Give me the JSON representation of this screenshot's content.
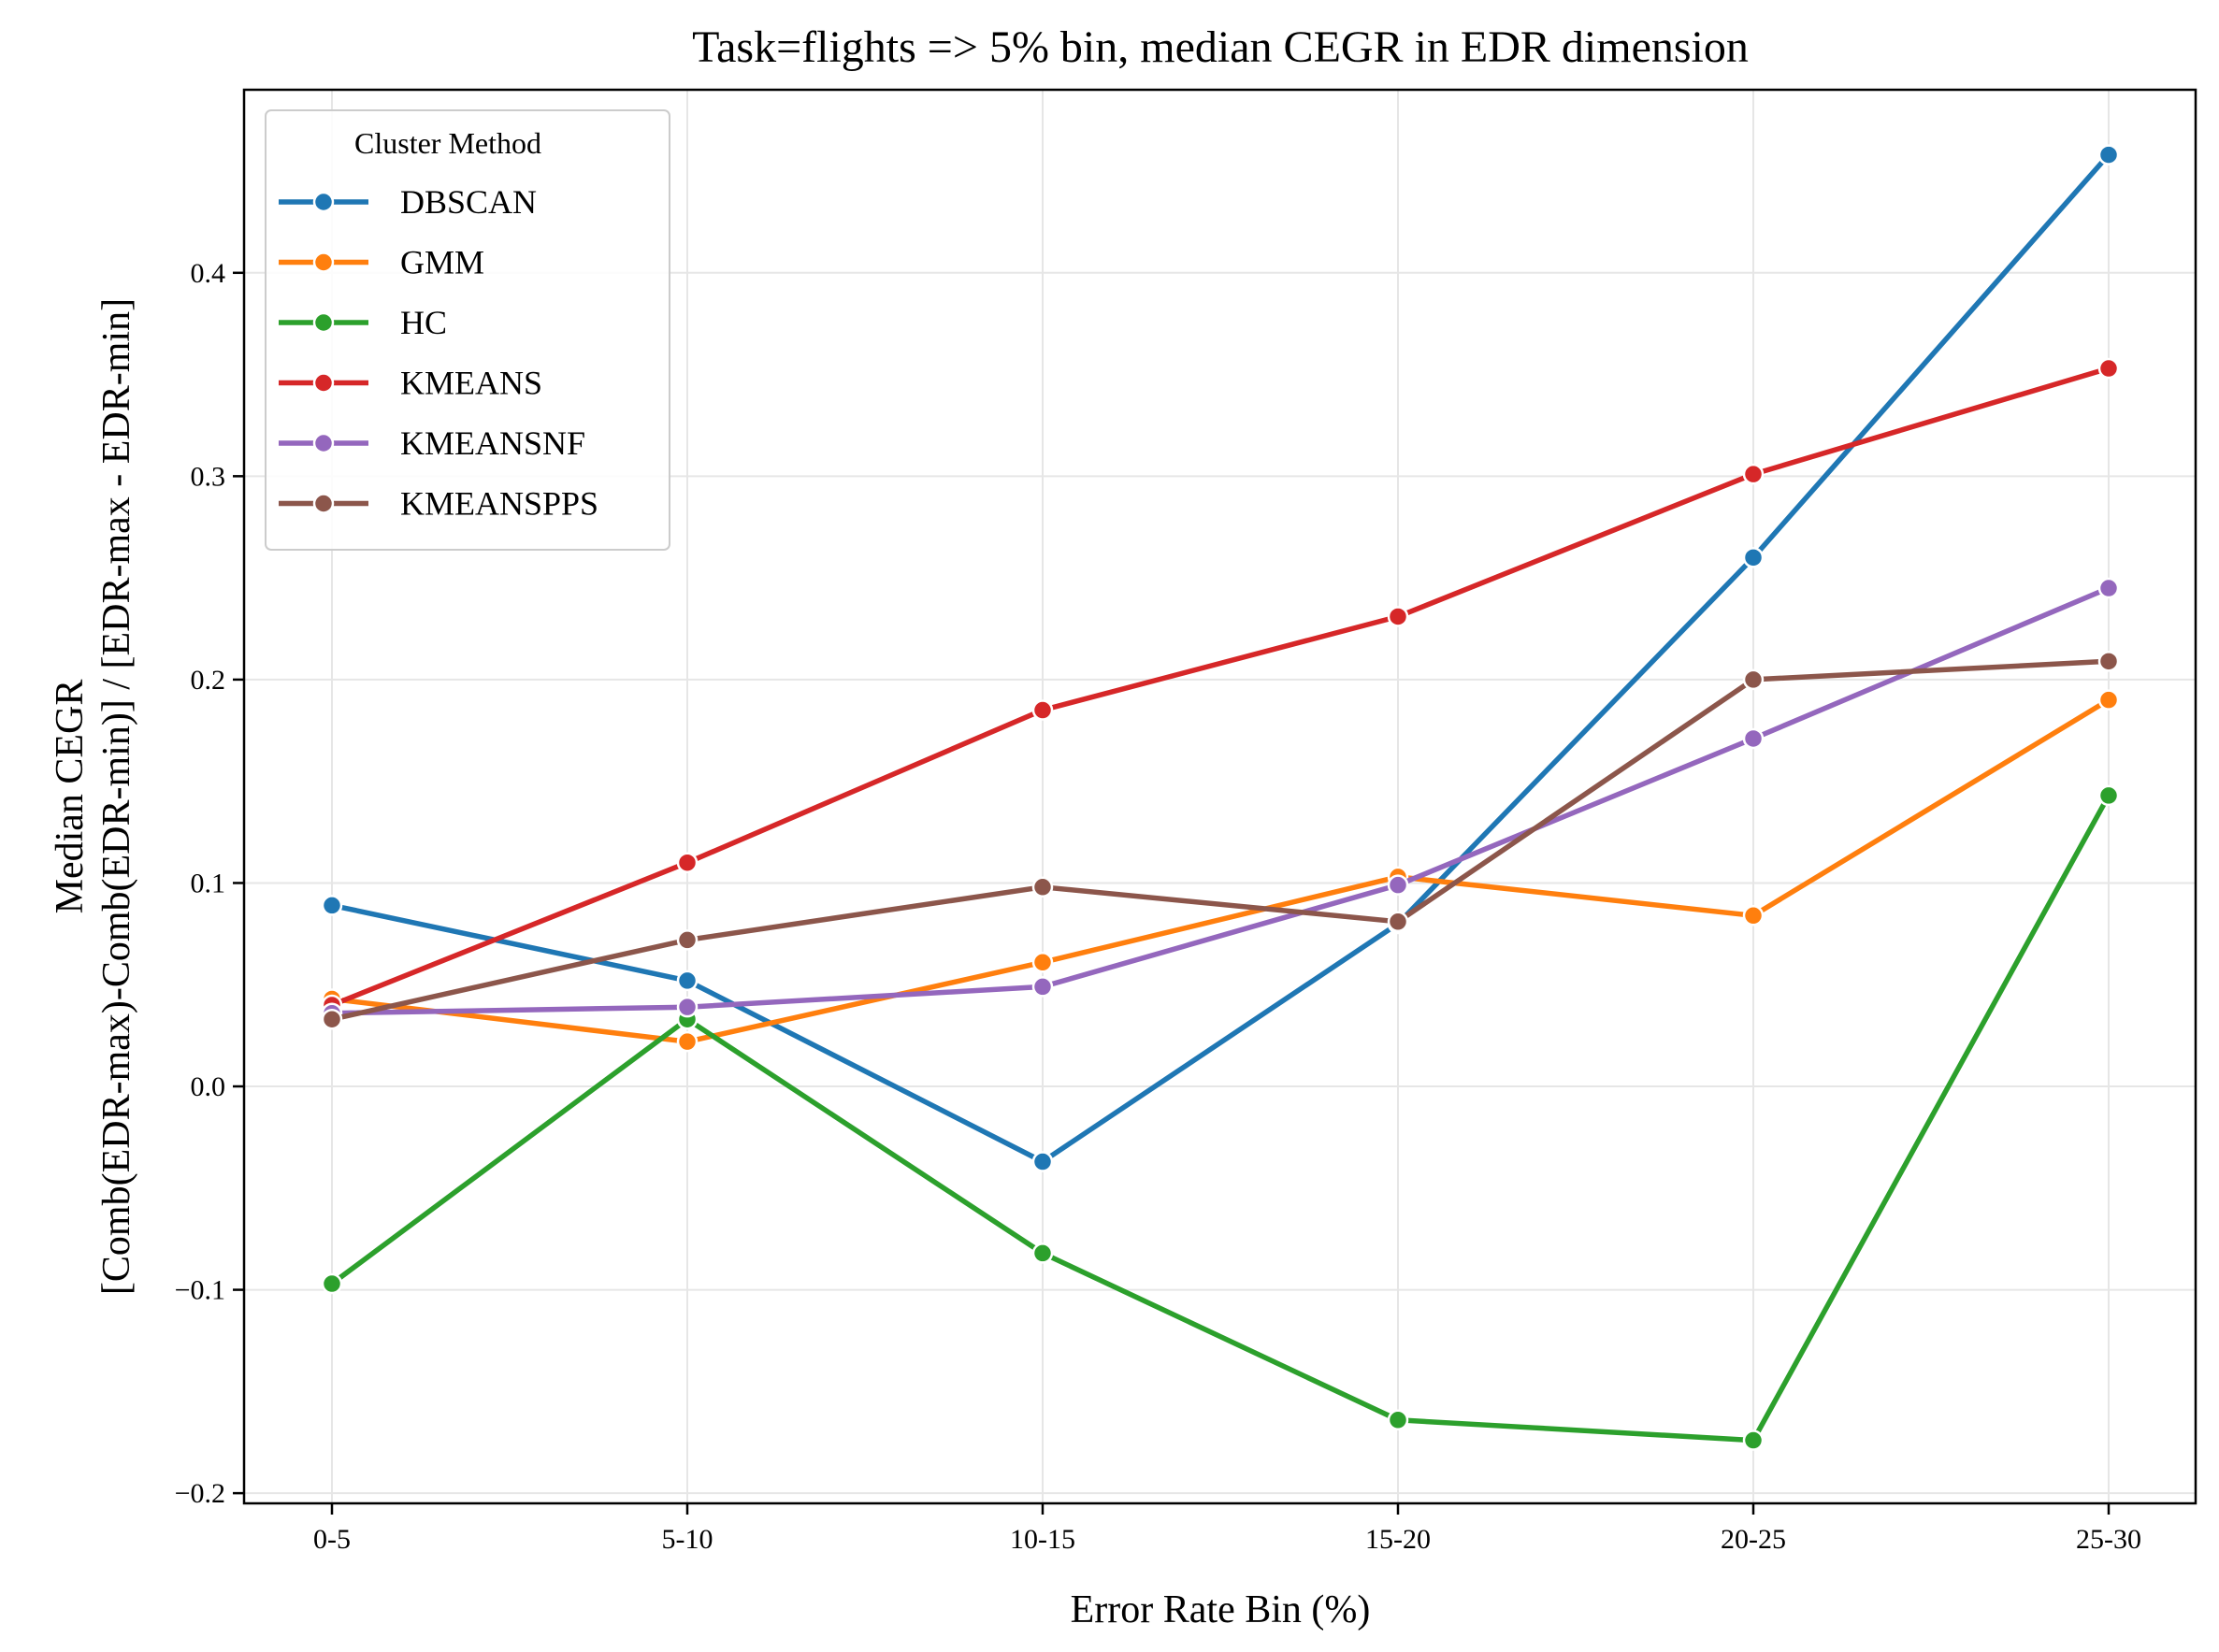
{
  "chart_data": {
    "type": "line",
    "title": "Task=flights => 5% bin, median CEGR in EDR dimension",
    "xlabel": "Error Rate Bin (%)",
    "ylabel": [
      "Median CEGR",
      "[Comb(EDR-max)-Comb(EDR-min)] / [EDR-max - EDR-min]"
    ],
    "categories": [
      "0-5",
      "5-10",
      "10-15",
      "15-20",
      "20-25",
      "25-30"
    ],
    "ylim": [
      -0.205,
      0.49
    ],
    "yticks": [
      -0.2,
      -0.1,
      0.0,
      0.1,
      0.2,
      0.3,
      0.4
    ],
    "ytick_labels": [
      "−0.2",
      "−0.1",
      "0.0",
      "0.1",
      "0.2",
      "0.3",
      "0.4"
    ],
    "grid": true,
    "legend": {
      "title": "Cluster Method",
      "position": "upper-left"
    },
    "series": [
      {
        "name": "DBSCAN",
        "color": "#1f77b4",
        "values": [
          0.089,
          0.052,
          -0.037,
          0.08,
          0.26,
          0.458
        ]
      },
      {
        "name": "GMM",
        "color": "#ff7f0e",
        "values": [
          0.043,
          0.022,
          0.061,
          0.103,
          0.084,
          0.19
        ]
      },
      {
        "name": "HC",
        "color": "#2ca02c",
        "values": [
          -0.097,
          0.033,
          -0.082,
          -0.164,
          -0.174,
          0.143
        ]
      },
      {
        "name": "KMEANS",
        "color": "#d62728",
        "values": [
          0.04,
          0.11,
          0.185,
          0.231,
          0.301,
          0.353
        ]
      },
      {
        "name": "KMEANSNF",
        "color": "#9467bd",
        "values": [
          0.036,
          0.039,
          0.049,
          0.099,
          0.171,
          0.245
        ]
      },
      {
        "name": "KMEANSPPS",
        "color": "#8c564b",
        "values": [
          0.033,
          0.072,
          0.098,
          0.081,
          0.2,
          0.209
        ]
      }
    ]
  }
}
